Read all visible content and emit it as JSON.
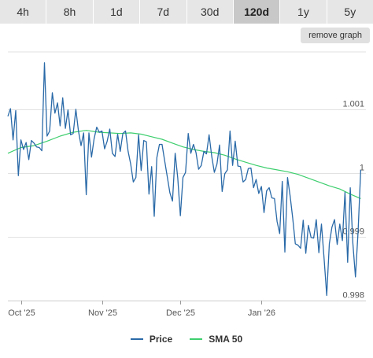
{
  "tabs": [
    "4h",
    "8h",
    "1d",
    "7d",
    "30d",
    "120d",
    "1y",
    "5y"
  ],
  "active_tab": "120d",
  "remove_graph_label": "remove graph",
  "legend": {
    "price_label": "Price",
    "sma_label": "SMA 50",
    "price_color": "#2a6aa8",
    "sma_color": "#3ecf6e"
  },
  "chart_data": {
    "type": "line",
    "x_range": [
      "2025-09-26",
      "2026-02-10"
    ],
    "x_ticks": [
      {
        "label": "Oct '25",
        "date": "2025-10-01"
      },
      {
        "label": "Nov '25",
        "date": "2025-11-01"
      },
      {
        "label": "Dec '25",
        "date": "2025-12-01"
      },
      {
        "label": "Jan '26",
        "date": "2026-01-01"
      }
    ],
    "y_ticks": [
      {
        "label": "0.998",
        "value": 0.998
      },
      {
        "label": "0.999",
        "value": 0.999
      },
      {
        "label": "1",
        "value": 1.0
      },
      {
        "label": "1.001",
        "value": 1.001
      }
    ],
    "ylim": [
      0.998,
      1.0019
    ],
    "grid": true,
    "legend_position": "bottom",
    "series": [
      {
        "name": "Price",
        "color": "#2a6aa8",
        "points": [
          [
            "2025-09-26",
            1.00089
          ],
          [
            "2025-09-27",
            1.00101
          ],
          [
            "2025-09-28",
            1.00052
          ],
          [
            "2025-09-29",
            1.00098
          ],
          [
            "2025-09-30",
            0.99996
          ],
          [
            "2025-10-01",
            1.00052
          ],
          [
            "2025-10-02",
            1.00037
          ],
          [
            "2025-10-03",
            1.00048
          ],
          [
            "2025-10-04",
            1.00021
          ],
          [
            "2025-10-05",
            1.00051
          ],
          [
            "2025-10-06",
            1.00047
          ],
          [
            "2025-10-07",
            1.00041
          ],
          [
            "2025-10-08",
            1.0004
          ],
          [
            "2025-10-09",
            1.00035
          ],
          [
            "2025-10-10",
            1.00173
          ],
          [
            "2025-10-11",
            1.00058
          ],
          [
            "2025-10-12",
            1.00066
          ],
          [
            "2025-10-13",
            1.00126
          ],
          [
            "2025-10-14",
            1.00094
          ],
          [
            "2025-10-15",
            1.0011
          ],
          [
            "2025-10-16",
            1.00074
          ],
          [
            "2025-10-17",
            1.00118
          ],
          [
            "2025-10-18",
            1.0007
          ],
          [
            "2025-10-19",
            1.00099
          ],
          [
            "2025-10-20",
            1.0006
          ],
          [
            "2025-10-21",
            1.00062
          ],
          [
            "2025-10-22",
            1.001
          ],
          [
            "2025-10-23",
            1.00066
          ],
          [
            "2025-10-24",
            1.00043
          ],
          [
            "2025-10-25",
            1.00063
          ],
          [
            "2025-10-26",
            0.99966
          ],
          [
            "2025-10-27",
            1.00063
          ],
          [
            "2025-10-28",
            1.00025
          ],
          [
            "2025-10-29",
            1.00054
          ],
          [
            "2025-10-30",
            1.00072
          ],
          [
            "2025-10-31",
            1.00064
          ],
          [
            "2025-11-01",
            1.00066
          ],
          [
            "2025-11-02",
            1.00038
          ],
          [
            "2025-11-03",
            1.0005
          ],
          [
            "2025-11-04",
            1.00069
          ],
          [
            "2025-11-05",
            1.00031
          ],
          [
            "2025-11-06",
            1.00026
          ],
          [
            "2025-11-07",
            1.00061
          ],
          [
            "2025-11-08",
            1.00034
          ],
          [
            "2025-11-09",
            1.00062
          ],
          [
            "2025-11-10",
            1.00066
          ],
          [
            "2025-11-11",
            1.00034
          ],
          [
            "2025-11-12",
            1.00014
          ],
          [
            "2025-11-13",
            0.99986
          ],
          [
            "2025-11-14",
            0.99993
          ],
          [
            "2025-11-15",
            1.0006
          ],
          [
            "2025-11-16",
            1.00004
          ],
          [
            "2025-11-17",
            1.00051
          ],
          [
            "2025-11-18",
            1.00049
          ],
          [
            "2025-11-19",
            0.99967
          ],
          [
            "2025-11-20",
            1.0001
          ],
          [
            "2025-11-21",
            0.99932
          ],
          [
            "2025-11-22",
            1.00024
          ],
          [
            "2025-11-23",
            1.00045
          ],
          [
            "2025-11-24",
            1.00045
          ],
          [
            "2025-11-25",
            1.00019
          ],
          [
            "2025-11-26",
            0.99994
          ],
          [
            "2025-11-27",
            0.99969
          ],
          [
            "2025-11-28",
            0.99956
          ],
          [
            "2025-11-29",
            1.00031
          ],
          [
            "2025-11-30",
            0.99992
          ],
          [
            "2025-12-01",
            0.99933
          ],
          [
            "2025-12-02",
            0.99993
          ],
          [
            "2025-12-03",
            1.00001
          ],
          [
            "2025-12-04",
            1.00062
          ],
          [
            "2025-12-05",
            1.00031
          ],
          [
            "2025-12-06",
            1.00045
          ],
          [
            "2025-12-07",
            1.00032
          ],
          [
            "2025-12-08",
            1.00006
          ],
          [
            "2025-12-09",
            1.00012
          ],
          [
            "2025-12-10",
            1.00034
          ],
          [
            "2025-12-11",
            1.0003
          ],
          [
            "2025-12-12",
            1.0006
          ],
          [
            "2025-12-13",
            1.00026
          ],
          [
            "2025-12-14",
            1.00001
          ],
          [
            "2025-12-15",
            1.00014
          ],
          [
            "2025-12-16",
            1.00044
          ],
          [
            "2025-12-17",
            0.99971
          ],
          [
            "2025-12-18",
            0.99999
          ],
          [
            "2025-12-19",
            1.00005
          ],
          [
            "2025-12-20",
            1.00066
          ],
          [
            "2025-12-21",
            1.00012
          ],
          [
            "2025-12-22",
            1.0005
          ],
          [
            "2025-12-23",
            1.00011
          ],
          [
            "2025-12-24",
            1.0001
          ],
          [
            "2025-12-25",
            0.99986
          ],
          [
            "2025-12-26",
            0.9999
          ],
          [
            "2025-12-27",
            1.00007
          ],
          [
            "2025-12-28",
            1.00008
          ],
          [
            "2025-12-29",
            0.99977
          ],
          [
            "2025-12-30",
            0.9999
          ],
          [
            "2025-12-31",
            0.99968
          ],
          [
            "2026-01-01",
            0.99979
          ],
          [
            "2026-01-02",
            0.99938
          ],
          [
            "2026-01-03",
            0.99972
          ],
          [
            "2026-01-04",
            0.99977
          ],
          [
            "2026-01-05",
            0.99961
          ],
          [
            "2026-01-06",
            0.9996
          ],
          [
            "2026-01-07",
            0.99924
          ],
          [
            "2026-01-08",
            0.99905
          ],
          [
            "2026-01-09",
            0.99987
          ],
          [
            "2026-01-10",
            0.99876
          ],
          [
            "2026-01-11",
            0.99993
          ],
          [
            "2026-01-12",
            0.99964
          ],
          [
            "2026-01-13",
            0.99929
          ],
          [
            "2026-01-14",
            0.99889
          ],
          [
            "2026-01-15",
            0.99887
          ],
          [
            "2026-01-16",
            0.99882
          ],
          [
            "2026-01-17",
            0.99926
          ],
          [
            "2026-01-18",
            0.99874
          ],
          [
            "2026-01-19",
            0.99918
          ],
          [
            "2026-01-20",
            0.99899
          ],
          [
            "2026-01-21",
            0.99898
          ],
          [
            "2026-01-22",
            0.99927
          ],
          [
            "2026-01-23",
            0.99875
          ],
          [
            "2026-01-24",
            0.9992
          ],
          [
            "2026-01-25",
            0.99865
          ],
          [
            "2026-01-26",
            0.99808
          ],
          [
            "2026-01-27",
            0.99889
          ],
          [
            "2026-01-28",
            0.99915
          ],
          [
            "2026-01-29",
            0.99927
          ],
          [
            "2026-01-30",
            0.99888
          ],
          [
            "2026-01-31",
            0.9992
          ],
          [
            "2026-02-01",
            0.99894
          ],
          [
            "2026-02-02",
            0.9997
          ],
          [
            "2026-02-03",
            0.9986
          ],
          [
            "2026-02-04",
            0.99977
          ],
          [
            "2026-02-05",
            0.9989
          ],
          [
            "2026-02-06",
            0.99837
          ],
          [
            "2026-02-07",
            0.99907
          ],
          [
            "2026-02-08",
            1.00005
          ]
        ]
      },
      {
        "name": "SMA 50",
        "color": "#3ecf6e",
        "points": [
          [
            "2025-09-26",
            1.00031
          ],
          [
            "2025-10-01",
            1.0004
          ],
          [
            "2025-10-06",
            1.00043
          ],
          [
            "2025-10-11",
            1.0005
          ],
          [
            "2025-10-16",
            1.00058
          ],
          [
            "2025-10-21",
            1.00064
          ],
          [
            "2025-10-26",
            1.00067
          ],
          [
            "2025-10-31",
            1.00064
          ],
          [
            "2025-11-04",
            1.00063
          ],
          [
            "2025-11-08",
            1.00062
          ],
          [
            "2025-11-12",
            1.00063
          ],
          [
            "2025-11-16",
            1.00061
          ],
          [
            "2025-11-20",
            1.00057
          ],
          [
            "2025-11-24",
            1.00053
          ],
          [
            "2025-11-28",
            1.00047
          ],
          [
            "2025-12-02",
            1.00041
          ],
          [
            "2025-12-06",
            1.00037
          ],
          [
            "2025-12-10",
            1.00034
          ],
          [
            "2025-12-14",
            1.00032
          ],
          [
            "2025-12-18",
            1.00028
          ],
          [
            "2025-12-22",
            1.00022
          ],
          [
            "2025-12-26",
            1.00017
          ],
          [
            "2025-12-30",
            1.00012
          ],
          [
            "2026-01-03",
            1.00008
          ],
          [
            "2026-01-07",
            1.00005
          ],
          [
            "2026-01-11",
            1.00002
          ],
          [
            "2026-01-15",
            0.99998
          ],
          [
            "2026-01-19",
            0.99992
          ],
          [
            "2026-01-23",
            0.99986
          ],
          [
            "2026-01-27",
            0.9998
          ],
          [
            "2026-01-31",
            0.99975
          ],
          [
            "2026-02-04",
            0.99967
          ],
          [
            "2026-02-08",
            0.9996
          ]
        ]
      }
    ]
  }
}
